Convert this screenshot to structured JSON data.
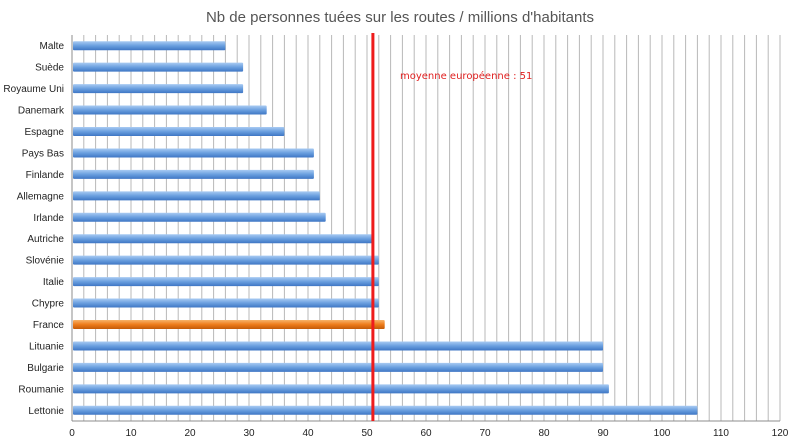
{
  "chart_data": {
    "type": "bar",
    "orientation": "horizontal",
    "title": "Nb de personnes tuées sur les routes / millions d'habitants",
    "xlabel": "",
    "ylabel": "",
    "categories": [
      "Malte",
      "Suède",
      "Royaume Uni",
      "Danemark",
      "Espagne",
      "Pays Bas",
      "Finlande",
      "Allemagne",
      "Irlande",
      "Autriche",
      "Slovénie",
      "Italie",
      "Chypre",
      "France",
      "Lituanie",
      "Bulgarie",
      "Roumanie",
      "Lettonie"
    ],
    "values": [
      26,
      29,
      29,
      33,
      36,
      41,
      41,
      42,
      43,
      51,
      52,
      52,
      52,
      53,
      90,
      90,
      91,
      106
    ],
    "highlight_category": "France",
    "xlim": [
      0,
      120
    ],
    "xticks": [
      0,
      10,
      20,
      30,
      40,
      50,
      60,
      70,
      80,
      90,
      100,
      110,
      120
    ],
    "grid": "vertical minor every 2",
    "reference_line": {
      "value": 51,
      "label": "moyenne européenne : 51"
    },
    "colors": {
      "bar": "#6a9fdf",
      "highlight": "#ee7c1a",
      "reference": "#ee1c1c",
      "grid": "#b8b8b8",
      "title": "#555555"
    }
  }
}
